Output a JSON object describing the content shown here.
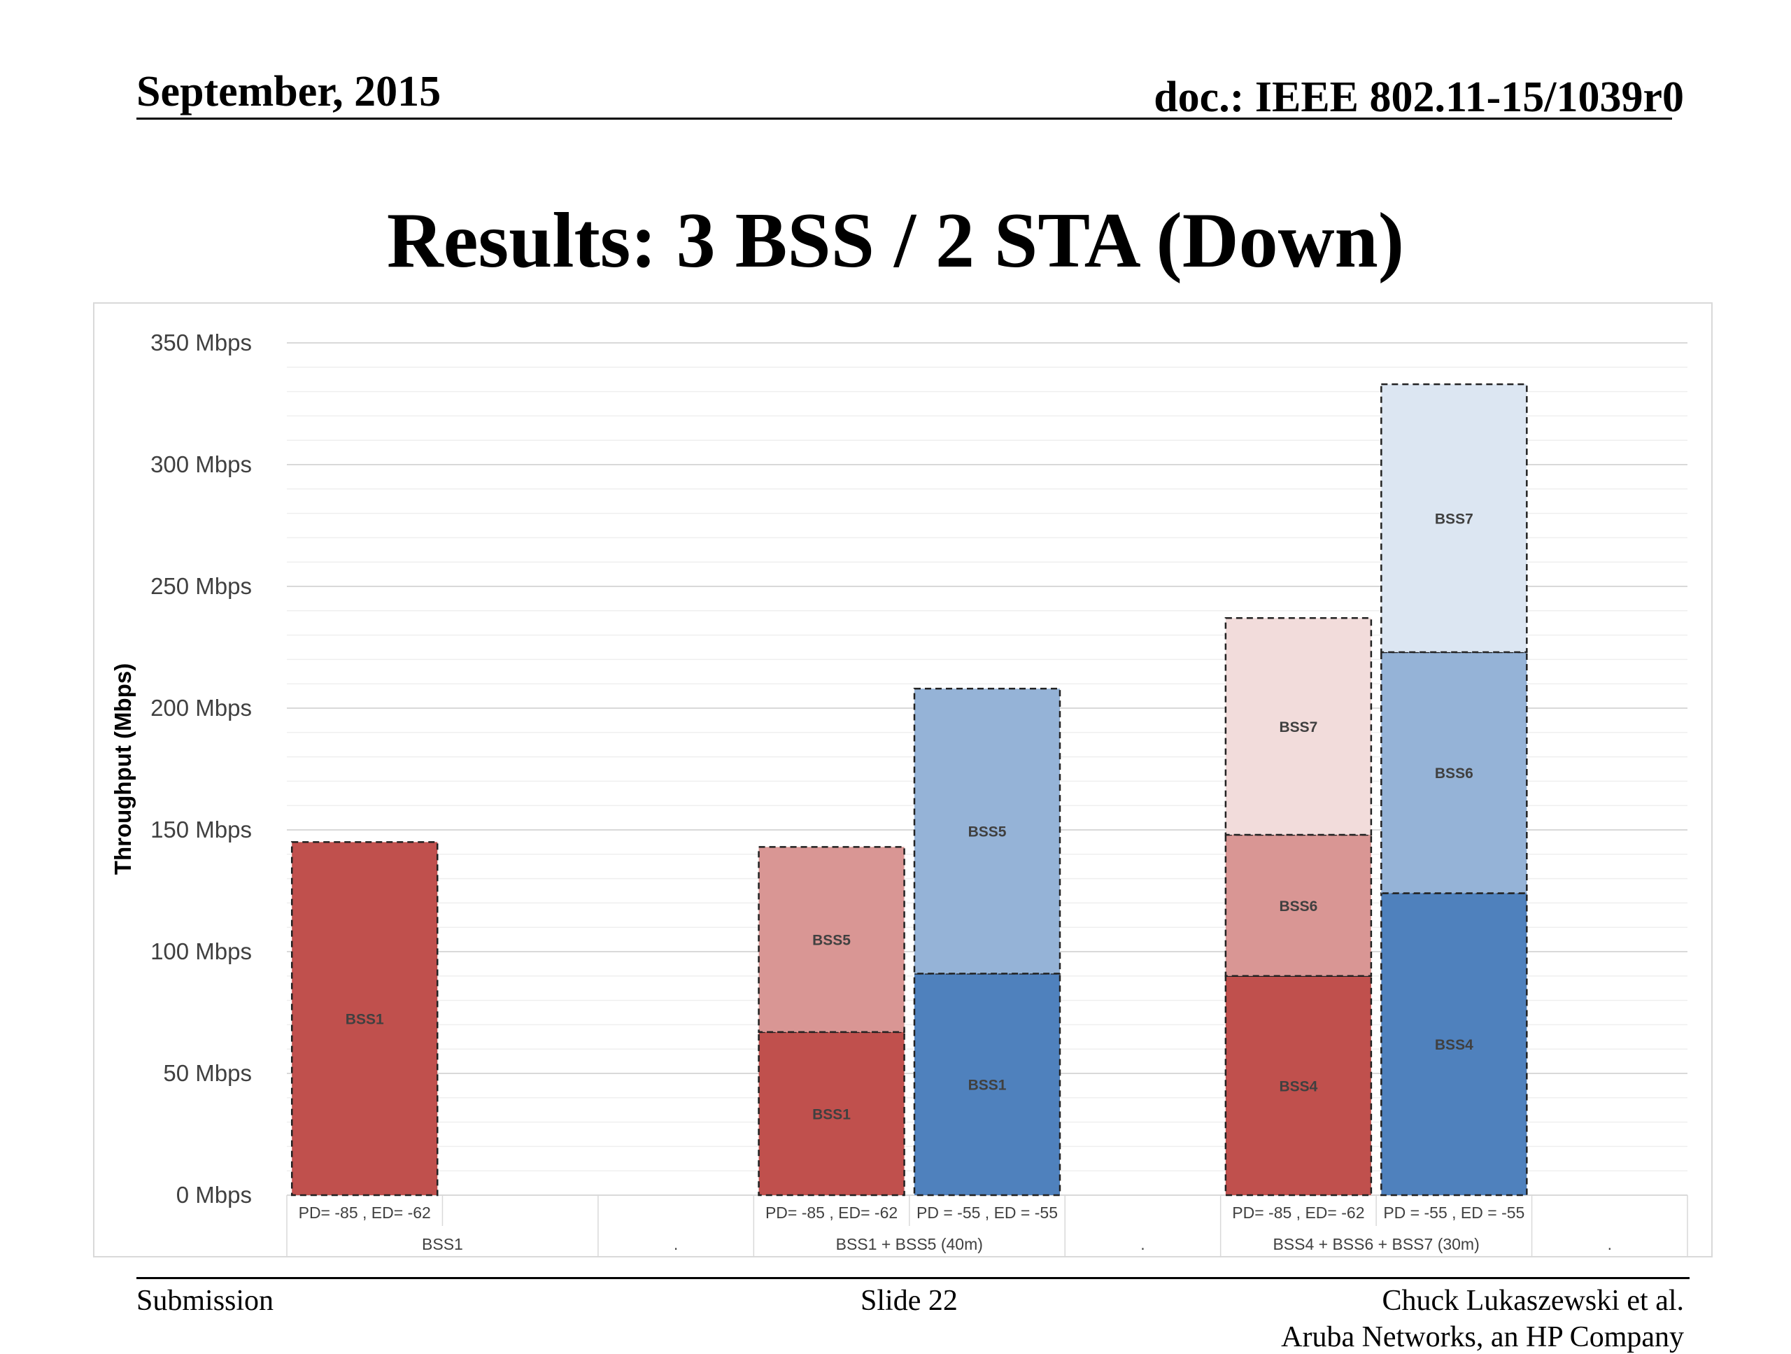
{
  "header": {
    "date": "September, 2015",
    "doc": "doc.: IEEE 802.11-15/1039r0"
  },
  "slide_title": "Results: 3 BSS / 2 STA (Down)",
  "footer": {
    "left": "Submission",
    "center": "Slide 22",
    "right_line1": "Chuck Lukaszewski et al.",
    "right_line2": "Aruba Networks, an HP Company"
  },
  "colors": {
    "red_dark": "#c0504d",
    "red_mid": "#d99694",
    "red_light": "#f2dcdb",
    "blue_dark": "#4f81bd",
    "blue_mid": "#95b3d7",
    "blue_light": "#dce6f2",
    "grid": "#e6e6e6"
  },
  "chart_data": {
    "type": "bar",
    "stacked": true,
    "title": "",
    "ylabel": "Throughput (Mbps)",
    "ylim": [
      0,
      350
    ],
    "yticks": [
      "0 Mbps",
      "50 Mbps",
      "100 Mbps",
      "150 Mbps",
      "200 Mbps",
      "250 Mbps",
      "300 Mbps",
      "350 Mbps"
    ],
    "grid": true,
    "legend": "none",
    "categories": [
      {
        "label": "PD= -85 , ED= -62",
        "group": "BSS1"
      },
      {
        "label": "",
        "group": "BSS1"
      },
      {
        "label": "",
        "group": "."
      },
      {
        "label": "PD= -85 , ED= -62",
        "group": "BSS1 + BSS5 (40m)"
      },
      {
        "label": "PD = -55 , ED = -55",
        "group": "BSS1 + BSS5 (40m)"
      },
      {
        "label": "",
        "group": "."
      },
      {
        "label": "PD= -85 , ED= -62",
        "group": "BSS4 + BSS6 + BSS7 (30m)"
      },
      {
        "label": "PD = -55 , ED = -55",
        "group": "BSS4 + BSS6 + BSS7 (30m)"
      },
      {
        "label": "",
        "group": "."
      }
    ],
    "groups": [
      "BSS1",
      ".",
      "BSS1 + BSS5 (40m)",
      ".",
      "BSS4 + BSS6 + BSS7 (30m)",
      "."
    ],
    "bars": [
      {
        "category_index": 0,
        "segments": [
          {
            "label": "BSS1",
            "value": 145,
            "color": "red_dark"
          }
        ]
      },
      {
        "category_index": 3,
        "segments": [
          {
            "label": "BSS1",
            "value": 67,
            "color": "red_dark"
          },
          {
            "label": "BSS5",
            "value": 76,
            "color": "red_mid"
          }
        ]
      },
      {
        "category_index": 4,
        "segments": [
          {
            "label": "BSS1",
            "value": 91,
            "color": "blue_dark"
          },
          {
            "label": "BSS5",
            "value": 117,
            "color": "blue_mid"
          }
        ]
      },
      {
        "category_index": 6,
        "segments": [
          {
            "label": "BSS4",
            "value": 90,
            "color": "red_dark"
          },
          {
            "label": "BSS6",
            "value": 58,
            "color": "red_mid"
          },
          {
            "label": "BSS7",
            "value": 89,
            "color": "red_light"
          }
        ]
      },
      {
        "category_index": 7,
        "segments": [
          {
            "label": "BSS4",
            "value": 124,
            "color": "blue_dark"
          },
          {
            "label": "BSS6",
            "value": 99,
            "color": "blue_mid"
          },
          {
            "label": "BSS7",
            "value": 110,
            "color": "blue_light"
          }
        ]
      }
    ]
  }
}
